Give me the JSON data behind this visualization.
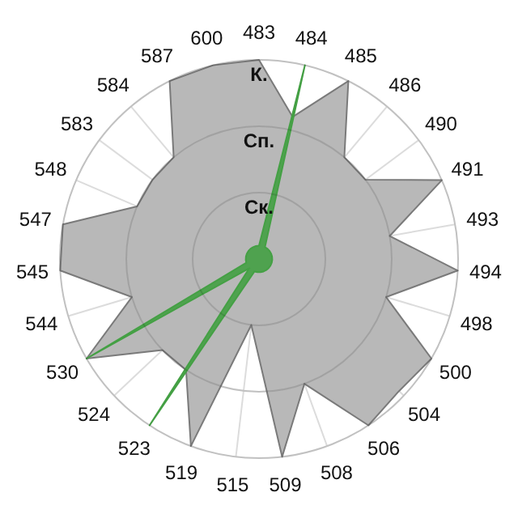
{
  "chart_data": {
    "type": "radar",
    "categories": [
      "483",
      "484",
      "485",
      "486",
      "490",
      "491",
      "493",
      "494",
      "498",
      "500",
      "504",
      "506",
      "508",
      "509",
      "515",
      "519",
      "523",
      "524",
      "530",
      "544",
      "545",
      "547",
      "548",
      "583",
      "584",
      "587",
      "600"
    ],
    "series": [
      {
        "color": "#b8b8b8",
        "values": [
          3,
          2.2,
          3,
          2,
          2,
          3,
          2,
          3,
          2,
          3,
          2.9,
          3,
          2,
          3,
          1,
          3,
          2,
          2,
          3,
          2,
          3,
          3,
          2,
          2,
          2,
          3,
          3
        ]
      },
      {
        "color": "#44a044",
        "values": [
          0.2,
          3,
          0.2,
          0.2,
          0.2,
          0.2,
          0.2,
          0.2,
          0.2,
          0.2,
          0.2,
          0.2,
          0.2,
          0.2,
          0.2,
          0.2,
          3,
          0.2,
          3,
          0.2,
          0.2,
          0.2,
          0.2,
          0.2,
          0.2,
          0.2,
          0.2
        ]
      }
    ],
    "ylim": [
      0,
      3
    ],
    "yticks": [
      {
        "value": 1,
        "label": "Ск."
      },
      {
        "value": 2,
        "label": "Сп."
      },
      {
        "value": 3,
        "label": "К."
      }
    ],
    "grid": true
  }
}
